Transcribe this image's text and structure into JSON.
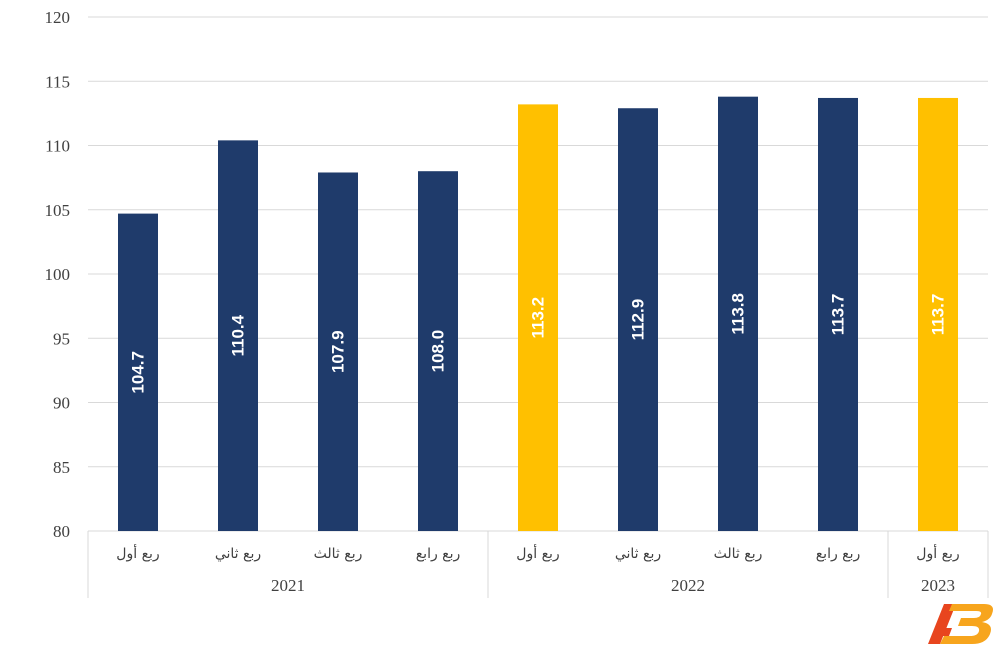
{
  "chart_data": {
    "type": "bar",
    "title": "",
    "xlabel": "",
    "ylabel": "",
    "ylim": [
      80,
      120
    ],
    "yticks": [
      80,
      85,
      90,
      95,
      100,
      105,
      110,
      115,
      120
    ],
    "grid": true,
    "legend": "none",
    "categories": [
      "ربع أول",
      "ربع ثاني",
      "ربع ثالث",
      "ربع رابع",
      "ربع أول",
      "ربع ثاني",
      "ربع ثالث",
      "ربع رابع",
      "ربع أول"
    ],
    "years": [
      {
        "label": "2021",
        "count": 4
      },
      {
        "label": "2022",
        "count": 4
      },
      {
        "label": "2023",
        "count": 1
      }
    ],
    "values": [
      104.7,
      110.4,
      107.9,
      108.0,
      113.2,
      112.9,
      113.8,
      113.7,
      113.7
    ],
    "data_labels": [
      "104.7",
      "110.4",
      "107.9",
      "108.0",
      "113.2",
      "112.9",
      "113.8",
      "113.7",
      "113.7"
    ],
    "bar_colors": [
      "#1f3b6b",
      "#1f3b6b",
      "#1f3b6b",
      "#1f3b6b",
      "#ffc000",
      "#1f3b6b",
      "#1f3b6b",
      "#1f3b6b",
      "#ffc000"
    ],
    "colors": {
      "primary": "#1f3b6b",
      "highlight": "#ffc000",
      "grid": "#d9d9d9",
      "axis_text": "#404040"
    }
  },
  "logo": {
    "name": "logo-icon",
    "colors": [
      "#e8451e",
      "#f7a51d"
    ]
  }
}
